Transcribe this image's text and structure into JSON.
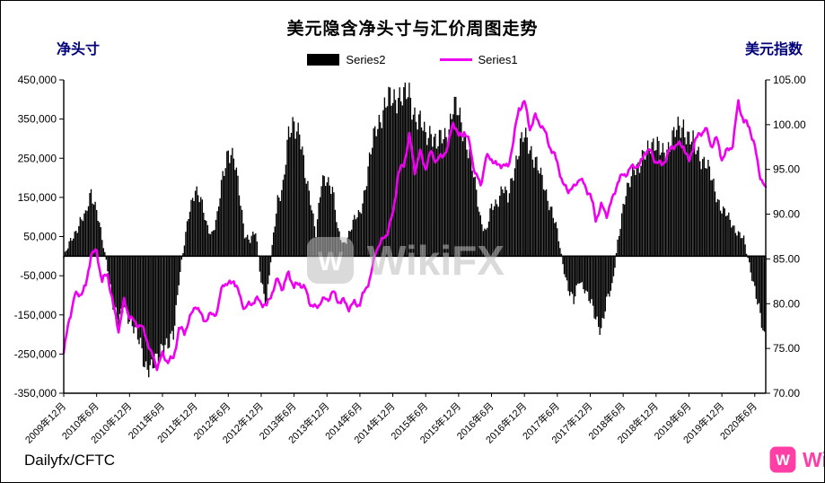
{
  "title": "美元隐含净头寸与汇价周图走势",
  "left_axis_title": "净头寸",
  "right_axis_title": "美元指数",
  "source_label": "Dailyfx/CFTC",
  "watermark": "WikiFX",
  "logo_glyph": "W",
  "legend": [
    {
      "label": "Series2",
      "color": "#000000",
      "type": "bar"
    },
    {
      "label": "Series1",
      "color": "#f000f0",
      "type": "line"
    }
  ],
  "colors": {
    "bar": "#000000",
    "line": "#f000f0",
    "axis": "#000000",
    "watermark": "#bdbdbd",
    "corner_logo": "#ff3fa6"
  },
  "chart_data": {
    "type": "bar",
    "overlay": "line",
    "title": "美元隐含净头寸与汇价周图走势",
    "grid": false,
    "legend_position": "top",
    "x_tick_labels": [
      "2009年12月",
      "2010年6月",
      "2010年12月",
      "2011年6月",
      "2011年12月",
      "2012年6月",
      "2012年12月",
      "2013年6月",
      "2013年12月",
      "2014年6月",
      "2014年12月",
      "2015年6月",
      "2015年12月",
      "2016年6月",
      "2016年12月",
      "2017年6月",
      "2017年12月",
      "2018年6月",
      "2018年12月",
      "2019年6月",
      "2019年12月",
      "2020年6月"
    ],
    "x_tick_month_step": 6,
    "x_start": "2009-12",
    "x_step_months": 1,
    "left_axis": {
      "title": "净头寸",
      "min": -350000,
      "max": 450000,
      "tick_step": 100000,
      "tick_labels": [
        "450,000",
        "350,000",
        "250,000",
        "150,000",
        "50,000",
        "-50,000",
        "-150,000",
        "-250,000",
        "-350,000"
      ]
    },
    "right_axis": {
      "title": "美元指数",
      "min": 70,
      "max": 105,
      "tick_step": 5,
      "tick_labels": [
        "105.00",
        "100.00",
        "95.00",
        "90.00",
        "85.00",
        "80.00",
        "75.00",
        "70.00"
      ]
    },
    "series": [
      {
        "name": "Series2",
        "type": "bar",
        "axis": "left",
        "color": "#000000",
        "values": [
          -5000,
          30000,
          60000,
          90000,
          100000,
          170000,
          120000,
          40000,
          -30000,
          -120000,
          -180000,
          -120000,
          -160000,
          -200000,
          -220000,
          -280000,
          -300000,
          -260000,
          -220000,
          -240000,
          -200000,
          -60000,
          30000,
          120000,
          180000,
          140000,
          80000,
          60000,
          100000,
          200000,
          280000,
          250000,
          160000,
          60000,
          40000,
          60000,
          -60000,
          -120000,
          20000,
          150000,
          180000,
          300000,
          350000,
          320000,
          200000,
          150000,
          60000,
          180000,
          200000,
          180000,
          60000,
          30000,
          60000,
          90000,
          110000,
          180000,
          260000,
          330000,
          370000,
          390000,
          400000,
          420000,
          400000,
          410000,
          370000,
          340000,
          300000,
          330000,
          280000,
          300000,
          320000,
          380000,
          360000,
          320000,
          260000,
          180000,
          100000,
          60000,
          120000,
          140000,
          180000,
          140000,
          220000,
          280000,
          300000,
          280000,
          250000,
          200000,
          160000,
          120000,
          60000,
          -20000,
          -80000,
          -120000,
          -60000,
          -80000,
          -120000,
          -160000,
          -180000,
          -120000,
          -80000,
          40000,
          120000,
          180000,
          240000,
          220000,
          260000,
          300000,
          280000,
          260000,
          280000,
          300000,
          320000,
          340000,
          300000,
          280000,
          260000,
          240000,
          200000,
          160000,
          120000,
          100000,
          80000,
          60000,
          40000,
          -20000,
          -80000,
          -160000,
          -230000
        ]
      },
      {
        "name": "Series1",
        "type": "line",
        "axis": "right",
        "color": "#f000f0",
        "values": [
          74.5,
          78,
          80.5,
          81,
          82,
          86,
          86,
          82.5,
          83,
          79.5,
          77,
          80.5,
          79,
          78,
          77.5,
          76,
          74,
          73,
          74.5,
          74,
          74,
          77,
          76.5,
          78,
          80,
          79,
          78.5,
          79,
          78.8,
          82,
          81.8,
          82.8,
          81.3,
          79.8,
          80,
          80.2,
          79.8,
          79.5,
          81.5,
          83,
          82,
          83.5,
          81.5,
          82,
          81.5,
          80.2,
          79.8,
          80.7,
          80.3,
          81,
          80,
          80.2,
          79.8,
          80.4,
          80.2,
          81.5,
          82.7,
          85.9,
          86.9,
          88.3,
          90.3,
          94.8,
          95.3,
          98.4,
          94.6,
          96.9,
          95.5,
          97.3,
          96,
          96.3,
          97,
          100.2,
          98.7,
          99.6,
          98.2,
          94.6,
          93,
          95.9,
          96.1,
          95.5,
          96,
          95.4,
          98.3,
          101.5,
          102.2,
          99.5,
          101.1,
          100.4,
          99,
          96.9,
          95.6,
          92.9,
          92.7,
          93.1,
          94.5,
          93.3,
          92.1,
          89.1,
          90.6,
          90,
          91.8,
          94,
          94.5,
          94.6,
          95.1,
          95.1,
          97.1,
          97.3,
          96.2,
          95.6,
          96.2,
          97.3,
          97.5,
          97.8,
          96.1,
          98.5,
          98.9,
          99.4,
          97.3,
          98.3,
          96.4,
          97.4,
          98.1,
          102.5,
          100,
          99.5,
          97.3,
          94.5,
          93
        ]
      }
    ]
  }
}
